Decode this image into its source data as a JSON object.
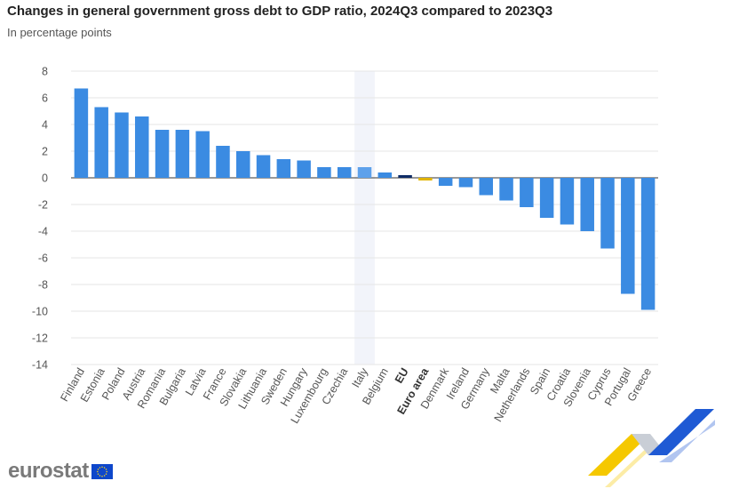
{
  "title": "Changes in general government gross debt to GDP ratio, 2024Q3 compared to 2023Q3",
  "subtitle": "In percentage points",
  "brand": "eurostat",
  "colors": {
    "bar": "#3b8be2",
    "bar_highlight": "#5ea1eb",
    "eu": "#0e2b66",
    "euro_area": "#e1b400",
    "grid": "#e6e6e6",
    "highlight_band": "#f2f4fa",
    "tick_text": "#555555"
  },
  "chart_data": {
    "type": "bar",
    "title": "Changes in general government gross debt to GDP ratio, 2024Q3 compared to 2023Q3",
    "subtitle": "In percentage points",
    "xlabel": "",
    "ylabel": "",
    "ylim": [
      -14,
      8
    ],
    "yticks": [
      8,
      6,
      4,
      2,
      0,
      -2,
      -4,
      -6,
      -8,
      -10,
      -12,
      -14
    ],
    "grid": true,
    "highlighted_category": "Italy",
    "bold_categories": [
      "EU",
      "Euro area"
    ],
    "categories": [
      "Finland",
      "Estonia",
      "Poland",
      "Austria",
      "Romania",
      "Bulgaria",
      "Latvia",
      "France",
      "Slovakia",
      "Lithuania",
      "Sweden",
      "Hungary",
      "Luxembourg",
      "Czechia",
      "Italy",
      "Belgium",
      "EU",
      "Euro area",
      "Denmark",
      "Ireland",
      "Germany",
      "Malta",
      "Netherlands",
      "Spain",
      "Croatia",
      "Slovenia",
      "Cyprus",
      "Portugal",
      "Greece"
    ],
    "values": [
      6.7,
      5.3,
      4.9,
      4.6,
      3.6,
      3.6,
      3.5,
      2.4,
      2.0,
      1.7,
      1.4,
      1.3,
      0.8,
      0.8,
      0.8,
      0.4,
      0.2,
      -0.2,
      -0.6,
      -0.7,
      -1.3,
      -1.7,
      -2.2,
      -3.0,
      -3.5,
      -4.0,
      -5.3,
      -8.7,
      -9.9
    ]
  }
}
